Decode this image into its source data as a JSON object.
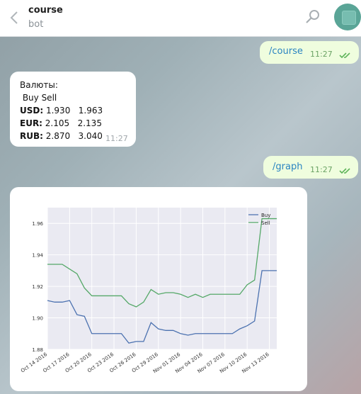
{
  "header": {
    "title": "course",
    "subtitle": "bot",
    "icons": {
      "back": "chevron-left-icon",
      "search": "search-icon",
      "avatar": "bot-avatar"
    }
  },
  "messages": {
    "m1": {
      "text": "/course",
      "time": "11:27",
      "status": "read"
    },
    "m2": {
      "title": "Валюты:",
      "header_row": " Buy Sell",
      "rows": [
        {
          "code": "USD:",
          "values": " 1.930   1.963"
        },
        {
          "code": "EUR:",
          "values": " 2.105   2.135"
        },
        {
          "code": "RUB:",
          "values": " 2.870   3.040"
        }
      ],
      "time": "11:27"
    },
    "m3": {
      "text": "/graph",
      "time": "11:27",
      "status": "read"
    }
  },
  "colors": {
    "buy": "#4c72b0",
    "sell": "#55a868",
    "plot_bg": "#eaeaf2",
    "accent": "#2a84c2"
  },
  "chart_data": {
    "type": "line",
    "title": "",
    "xlabel": "",
    "ylabel": "",
    "x": [
      "2016-10-14",
      "2016-10-15",
      "2016-10-16",
      "2016-10-17",
      "2016-10-18",
      "2016-10-19",
      "2016-10-20",
      "2016-10-21",
      "2016-10-22",
      "2016-10-23",
      "2016-10-24",
      "2016-10-25",
      "2016-10-26",
      "2016-10-27",
      "2016-10-28",
      "2016-10-29",
      "2016-10-30",
      "2016-10-31",
      "2016-11-01",
      "2016-11-02",
      "2016-11-03",
      "2016-11-04",
      "2016-11-05",
      "2016-11-06",
      "2016-11-07",
      "2016-11-08",
      "2016-11-09",
      "2016-11-10",
      "2016-11-11",
      "2016-11-12",
      "2016-11-13",
      "2016-11-14"
    ],
    "series": [
      {
        "name": "Buy",
        "values": [
          1.911,
          1.91,
          1.91,
          1.911,
          1.902,
          1.901,
          1.89,
          1.89,
          1.89,
          1.89,
          1.89,
          1.884,
          1.885,
          1.885,
          1.897,
          1.893,
          1.892,
          1.892,
          1.89,
          1.889,
          1.89,
          1.89,
          1.89,
          1.89,
          1.89,
          1.89,
          1.893,
          1.895,
          1.898,
          1.93,
          1.93,
          1.93
        ]
      },
      {
        "name": "Sell",
        "values": [
          1.934,
          1.934,
          1.934,
          1.931,
          1.928,
          1.919,
          1.914,
          1.914,
          1.914,
          1.914,
          1.914,
          1.909,
          1.907,
          1.91,
          1.918,
          1.915,
          1.916,
          1.916,
          1.915,
          1.913,
          1.915,
          1.913,
          1.915,
          1.915,
          1.915,
          1.915,
          1.915,
          1.921,
          1.924,
          1.963,
          1.963,
          1.963
        ]
      }
    ],
    "ylim": [
      1.88,
      1.97
    ],
    "yticks": [
      "1.88",
      "1.90",
      "1.92",
      "1.94",
      "1.96"
    ],
    "xtick_labels": [
      "Oct 14 2016",
      "Oct 17 2016",
      "Oct 20 2016",
      "Oct 23 2016",
      "Oct 26 2016",
      "Oct 29 2016",
      "Nov 01 2016",
      "Nov 04 2016",
      "Nov 07 2016",
      "Nov 10 2016",
      "Nov 13 2016"
    ],
    "grid": true,
    "legend": "top-right"
  }
}
